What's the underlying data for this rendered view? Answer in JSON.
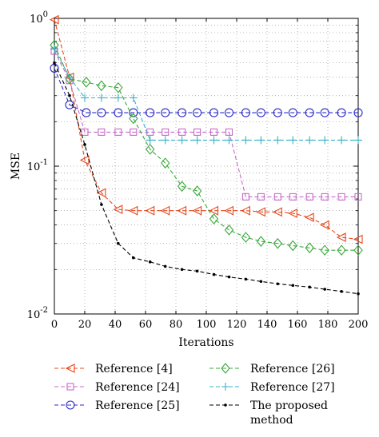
{
  "chart_data": {
    "type": "line",
    "xlabel": "Iterations",
    "ylabel": "MSE",
    "xlim": [
      0,
      200
    ],
    "ylim": [
      0.01,
      1
    ],
    "yscale": "log",
    "grid": true,
    "legend_position": "bottom",
    "x_ticks": [
      "0",
      "20",
      "40",
      "60",
      "80",
      "100",
      "120",
      "140",
      "160",
      "180",
      "200"
    ],
    "y_ticks": [
      {
        "value": 1,
        "base": "10",
        "exp": "0"
      },
      {
        "value": 0.1,
        "base": "10",
        "exp": "-1"
      },
      {
        "value": 0.01,
        "base": "10",
        "exp": "-2"
      }
    ],
    "series": [
      {
        "name": "Reference [4]",
        "color": "#e8481c",
        "marker": "triangle-left",
        "x": [
          0,
          10,
          20,
          31,
          42,
          52,
          63,
          73,
          84,
          94,
          105,
          115,
          126,
          136,
          147,
          157,
          168,
          178,
          189,
          200
        ],
        "y": [
          0.98,
          0.4,
          0.11,
          0.066,
          0.051,
          0.05,
          0.05,
          0.05,
          0.05,
          0.05,
          0.05,
          0.05,
          0.05,
          0.049,
          0.049,
          0.048,
          0.045,
          0.04,
          0.033,
          0.032
        ]
      },
      {
        "name": "Reference [24]",
        "color": "#c86ac8",
        "marker": "square",
        "x": [
          0,
          10,
          20,
          31,
          42,
          52,
          63,
          73,
          84,
          94,
          105,
          115,
          126,
          136,
          147,
          157,
          168,
          178,
          189,
          200
        ],
        "y": [
          0.6,
          0.38,
          0.17,
          0.17,
          0.17,
          0.17,
          0.17,
          0.17,
          0.17,
          0.17,
          0.17,
          0.17,
          0.062,
          0.062,
          0.062,
          0.062,
          0.062,
          0.062,
          0.062,
          0.062
        ]
      },
      {
        "name": "Reference [25]",
        "color": "#2a2ac8",
        "marker": "circle",
        "x": [
          0,
          10,
          21,
          31,
          42,
          52,
          63,
          73,
          84,
          94,
          105,
          115,
          126,
          136,
          147,
          157,
          168,
          178,
          189,
          200
        ],
        "y": [
          0.46,
          0.26,
          0.23,
          0.23,
          0.23,
          0.23,
          0.23,
          0.23,
          0.23,
          0.23,
          0.23,
          0.23,
          0.23,
          0.23,
          0.23,
          0.23,
          0.23,
          0.23,
          0.23,
          0.23
        ]
      },
      {
        "name": "Reference [26]",
        "color": "#3aa83a",
        "marker": "diamond",
        "x": [
          0,
          10,
          21,
          31,
          42,
          52,
          63,
          73,
          84,
          94,
          105,
          115,
          126,
          136,
          147,
          157,
          168,
          178,
          189,
          200
        ],
        "y": [
          0.66,
          0.39,
          0.37,
          0.35,
          0.34,
          0.21,
          0.13,
          0.105,
          0.073,
          0.068,
          0.044,
          0.037,
          0.033,
          0.031,
          0.03,
          0.029,
          0.028,
          0.027,
          0.027,
          0.027
        ]
      },
      {
        "name": "Reference [27]",
        "color": "#3ab0c8",
        "marker": "plus",
        "x": [
          0,
          10,
          20,
          31,
          42,
          52,
          63,
          73,
          84,
          94,
          105,
          115,
          126,
          136,
          147,
          157,
          168,
          178,
          189,
          200
        ],
        "y": [
          0.62,
          0.4,
          0.29,
          0.29,
          0.29,
          0.29,
          0.15,
          0.15,
          0.15,
          0.15,
          0.15,
          0.15,
          0.15,
          0.15,
          0.15,
          0.15,
          0.15,
          0.15,
          0.15,
          0.15
        ]
      },
      {
        "name": "The proposed method",
        "color": "#000000",
        "marker": "dot",
        "x": [
          0,
          10,
          20,
          31,
          42,
          52,
          63,
          73,
          84,
          94,
          105,
          115,
          126,
          136,
          147,
          157,
          168,
          178,
          189,
          200
        ],
        "y": [
          0.5,
          0.3,
          0.14,
          0.055,
          0.03,
          0.024,
          0.0225,
          0.021,
          0.02,
          0.0195,
          0.0185,
          0.0178,
          0.0172,
          0.0166,
          0.016,
          0.0156,
          0.0152,
          0.0147,
          0.0142,
          0.0137
        ]
      }
    ],
    "legend": [
      {
        "line1": "Reference [4]",
        "line2": ""
      },
      {
        "line1": "Reference [24]",
        "line2": ""
      },
      {
        "line1": "Reference [25]",
        "line2": ""
      },
      {
        "line1": "Reference [26]",
        "line2": ""
      },
      {
        "line1": "Reference [27]",
        "line2": ""
      },
      {
        "line1": "The proposed",
        "line2": "method"
      }
    ]
  }
}
